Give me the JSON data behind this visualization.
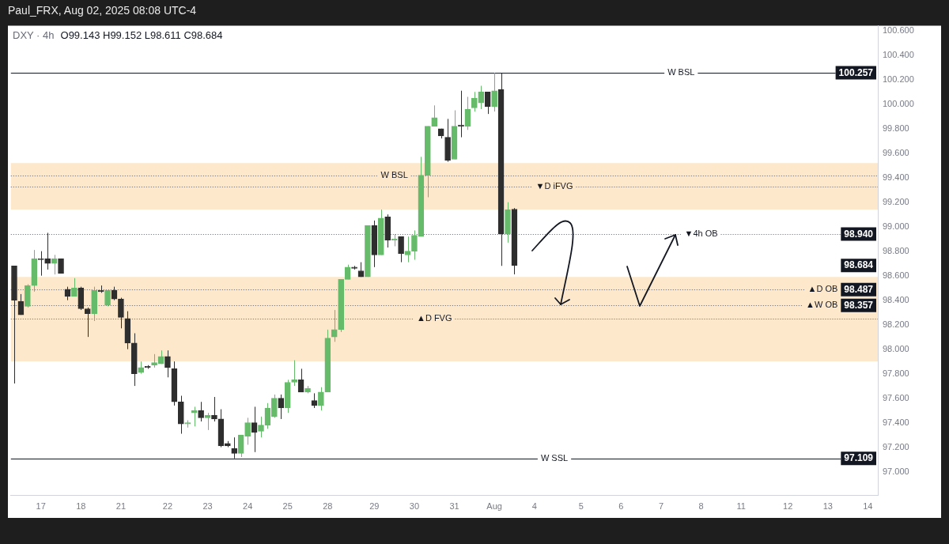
{
  "chart_data": {
    "type": "candlestick",
    "title": "DXY · 4h",
    "subtitle": "O99.143 H99.152 L98.611 C98.684",
    "annotations": [
      "Paul_FRX, Aug 02, 2025 08:08 UTC-4",
      "98.684",
      "100.257",
      "98.940",
      "98.487",
      "98.357",
      "97.109"
    ],
    "categories": [
      null,
      null,
      null,
      null,
      "17",
      null,
      null,
      null,
      null,
      null,
      "18",
      null,
      null,
      null,
      null,
      null,
      "21",
      null,
      null,
      null,
      null,
      null,
      null,
      "22",
      null,
      null,
      null,
      null,
      null,
      "23",
      null,
      null,
      null,
      null,
      null,
      "24",
      null,
      null,
      null,
      null,
      null,
      "25",
      null,
      null,
      null,
      null,
      null,
      "28",
      null,
      null,
      null,
      null,
      null,
      null,
      "29",
      null,
      null,
      null,
      null,
      null,
      "30",
      null,
      null,
      null,
      null,
      null,
      "31",
      null,
      null,
      null,
      null,
      null,
      "Aug",
      null,
      null,
      null,
      null,
      null,
      "4",
      null,
      null,
      null,
      null,
      null,
      null,
      "5",
      null,
      null,
      null,
      null,
      null,
      "6",
      null,
      null,
      null,
      null,
      null,
      "7",
      null,
      null,
      null,
      null,
      null,
      "8",
      null,
      null,
      null,
      null,
      null,
      "11",
      null,
      null,
      null,
      null,
      null,
      null,
      "12",
      null,
      null,
      null,
      null,
      null,
      "13",
      null,
      null,
      null,
      null,
      null,
      "14",
      null
    ],
    "ohlc": [
      [
        98.68,
        98.68,
        97.72,
        98.4
      ],
      [
        98.39,
        98.45,
        98.28,
        98.28
      ],
      [
        98.35,
        98.53,
        98.34,
        98.52
      ],
      [
        98.52,
        98.81,
        98.47,
        98.74
      ],
      [
        98.74,
        98.8,
        98.6,
        98.73
      ],
      [
        98.74,
        98.95,
        98.65,
        98.7
      ],
      [
        98.7,
        98.77,
        98.61,
        98.74
      ],
      [
        98.74,
        98.74,
        98.62,
        98.62
      ],
      [
        98.49,
        98.51,
        98.4,
        98.43
      ],
      [
        98.43,
        98.58,
        98.43,
        98.5
      ],
      [
        98.5,
        98.51,
        98.32,
        98.33
      ],
      [
        98.33,
        98.34,
        98.1,
        98.29
      ],
      [
        98.29,
        98.51,
        98.23,
        98.48
      ],
      [
        98.48,
        98.52,
        98.46,
        98.47
      ],
      [
        98.36,
        98.48,
        98.35,
        98.48
      ],
      [
        98.48,
        98.51,
        98.4,
        98.41
      ],
      [
        98.41,
        98.42,
        98.17,
        98.26
      ],
      [
        98.25,
        98.31,
        98.0,
        98.05
      ],
      [
        98.05,
        98.13,
        97.7,
        97.8
      ],
      [
        97.81,
        97.9,
        97.8,
        97.85
      ],
      [
        97.86,
        97.87,
        97.84,
        97.85
      ],
      [
        97.87,
        97.96,
        97.85,
        97.89
      ],
      [
        97.88,
        97.99,
        97.88,
        97.94
      ],
      [
        97.94,
        97.99,
        97.77,
        97.85
      ],
      [
        97.84,
        97.9,
        97.54,
        97.57
      ],
      [
        97.57,
        97.62,
        97.31,
        97.39
      ],
      [
        97.39,
        97.42,
        97.36,
        97.4
      ],
      [
        97.48,
        97.53,
        97.37,
        97.5
      ],
      [
        97.5,
        97.57,
        97.41,
        97.44
      ],
      [
        97.44,
        97.48,
        97.34,
        97.46
      ],
      [
        97.46,
        97.61,
        97.41,
        97.43
      ],
      [
        97.43,
        97.51,
        97.2,
        97.21
      ],
      [
        97.23,
        97.25,
        97.2,
        97.21
      ],
      [
        97.19,
        97.28,
        97.109,
        97.15
      ],
      [
        97.15,
        97.3,
        97.12,
        97.3
      ],
      [
        97.29,
        97.44,
        97.22,
        97.4
      ],
      [
        97.4,
        97.53,
        97.16,
        97.32
      ],
      [
        97.33,
        97.45,
        97.28,
        97.38
      ],
      [
        97.38,
        97.56,
        97.35,
        97.52
      ],
      [
        97.45,
        97.63,
        97.44,
        97.6
      ],
      [
        97.6,
        97.63,
        97.43,
        97.52
      ],
      [
        97.52,
        97.75,
        97.48,
        97.73
      ],
      [
        97.73,
        97.91,
        97.7,
        97.75
      ],
      [
        97.75,
        97.84,
        97.65,
        97.65
      ],
      [
        97.65,
        97.7,
        97.64,
        97.68
      ],
      [
        97.58,
        97.64,
        97.52,
        97.54
      ],
      [
        97.54,
        97.69,
        97.5,
        97.65
      ],
      [
        97.65,
        98.16,
        97.65,
        98.09
      ],
      [
        98.1,
        98.32,
        98.06,
        98.16
      ],
      [
        98.16,
        98.57,
        98.14,
        98.57
      ],
      [
        98.57,
        98.69,
        98.57,
        98.67
      ],
      [
        98.67,
        98.68,
        98.65,
        98.66
      ],
      [
        98.64,
        98.71,
        98.59,
        98.59
      ],
      [
        98.59,
        99.01,
        98.59,
        99.01
      ],
      [
        99.01,
        99.05,
        98.67,
        98.77
      ],
      [
        98.77,
        99.14,
        98.77,
        99.07
      ],
      [
        99.08,
        99.1,
        98.83,
        98.89
      ],
      [
        98.89,
        98.94,
        98.84,
        98.9
      ],
      [
        98.92,
        98.92,
        98.71,
        98.78
      ],
      [
        98.77,
        98.92,
        98.71,
        98.8
      ],
      [
        98.8,
        98.97,
        98.73,
        98.93
      ],
      [
        98.92,
        99.57,
        98.92,
        99.42
      ],
      [
        99.42,
        99.82,
        99.24,
        99.82
      ],
      [
        99.82,
        99.99,
        99.82,
        99.89
      ],
      [
        99.8,
        99.8,
        99.72,
        99.74
      ],
      [
        99.73,
        99.88,
        99.53,
        99.54
      ],
      [
        99.55,
        99.95,
        99.55,
        99.82
      ],
      [
        99.83,
        100.11,
        99.73,
        99.82
      ],
      [
        99.82,
        100.06,
        99.79,
        99.96
      ],
      [
        99.97,
        100.1,
        99.94,
        100.05
      ],
      [
        100.01,
        100.15,
        99.96,
        100.1
      ],
      [
        100.1,
        100.1,
        99.92,
        99.98
      ],
      [
        99.98,
        100.257,
        99.94,
        100.11
      ],
      [
        100.12,
        100.25,
        98.68,
        98.94
      ],
      [
        98.94,
        99.2,
        98.87,
        99.14
      ],
      [
        99.143,
        99.152,
        98.611,
        98.684
      ],
      null,
      null,
      null,
      null,
      null,
      null,
      null,
      null,
      null,
      null,
      null,
      null,
      null,
      null,
      null,
      null,
      null,
      null,
      null,
      null,
      null,
      null,
      null,
      null,
      null,
      null,
      null,
      null,
      null,
      null,
      null,
      null,
      null,
      null,
      null,
      null,
      null,
      null,
      null,
      null,
      null,
      null,
      null,
      null,
      null,
      null,
      null,
      null,
      null,
      null,
      null,
      null,
      null,
      null
    ],
    "colors": [
      "#2e2e2e",
      "#2e2e2e",
      "#66bb6a",
      "#66bb6a",
      "#2e2e2e",
      "#2e2e2e",
      "#66bb6a",
      "#2e2e2e",
      "#2e2e2e",
      "#66bb6a",
      "#2e2e2e",
      "#2e2e2e",
      "#66bb6a",
      "#2e2e2e",
      "#66bb6a",
      "#2e2e2e",
      "#2e2e2e",
      "#2e2e2e",
      "#2e2e2e",
      "#66bb6a",
      "#2e2e2e",
      "#66bb6a",
      "#66bb6a",
      "#2e2e2e",
      "#2e2e2e",
      "#2e2e2e",
      "#66bb6a",
      "#66bb6a",
      "#2e2e2e",
      "#66bb6a",
      "#2e2e2e",
      "#2e2e2e",
      "#2e2e2e",
      "#2e2e2e",
      "#66bb6a",
      "#66bb6a",
      "#2e2e2e",
      "#66bb6a",
      "#66bb6a",
      "#66bb6a",
      "#2e2e2e",
      "#66bb6a",
      "#66bb6a",
      "#2e2e2e",
      "#66bb6a",
      "#2e2e2e",
      "#66bb6a",
      "#66bb6a",
      "#66bb6a",
      "#66bb6a",
      "#66bb6a",
      "#2e2e2e",
      "#2e2e2e",
      "#66bb6a",
      "#2e2e2e",
      "#66bb6a",
      "#2e2e2e",
      "#66bb6a",
      "#2e2e2e",
      "#66bb6a",
      "#66bb6a",
      "#66bb6a",
      "#66bb6a",
      "#66bb6a",
      "#2e2e2e",
      "#2e2e2e",
      "#66bb6a",
      "#2e2e2e",
      "#66bb6a",
      "#66bb6a",
      "#66bb6a",
      "#2e2e2e",
      "#66bb6a",
      "#2e2e2e",
      "#66bb6a",
      "#2e2e2e",
      null,
      null,
      null,
      null,
      null,
      null,
      null,
      null,
      null,
      null,
      null,
      null,
      null,
      null,
      null,
      null,
      null,
      null,
      null,
      null,
      null,
      null,
      null,
      null,
      null,
      null,
      null,
      null,
      null,
      null,
      null,
      null,
      null,
      null,
      null,
      null,
      null,
      null,
      null,
      null,
      null,
      null,
      null,
      null,
      null,
      null,
      null,
      null,
      null,
      null,
      null,
      null,
      null,
      null
    ],
    "ylim": [
      96.81,
      100.64
    ],
    "yticks": [
      {
        "value": 97,
        "label": "97.000"
      },
      {
        "value": 97.2,
        "label": "97.200"
      },
      {
        "value": 97.4,
        "label": "97.400"
      },
      {
        "value": 97.6,
        "label": "97.600"
      },
      {
        "value": 97.8,
        "label": "97.800"
      },
      {
        "value": 98,
        "label": "98.000"
      },
      {
        "value": 98.2,
        "label": "98.200"
      },
      {
        "value": 98.4,
        "label": "98.400"
      },
      {
        "value": 98.6,
        "label": "98.600"
      },
      {
        "value": 98.8,
        "label": "98.800"
      },
      {
        "value": 99,
        "label": "99.000"
      },
      {
        "value": 99.2,
        "label": "99.200"
      },
      {
        "value": 99.4,
        "label": "99.400"
      },
      {
        "value": 99.6,
        "label": "99.600"
      },
      {
        "value": 99.8,
        "label": "99.800"
      },
      {
        "value": 100,
        "label": "100.000"
      },
      {
        "value": 100.2,
        "label": "100.200"
      },
      {
        "value": 100.4,
        "label": "100.400"
      },
      {
        "value": 100.6,
        "label": "100.600"
      }
    ],
    "bands": [
      {
        "axis": "y",
        "from": 99.14,
        "to": 99.52,
        "color": "#fde8cc"
      },
      {
        "axis": "y",
        "from": 97.9,
        "to": 98.59,
        "color": "#fde8cc"
      }
    ],
    "ref_lines": [
      {
        "axis": "y",
        "value": 100.257,
        "label": "W BSL",
        "color": "#131722",
        "line_style": "solid"
      },
      {
        "axis": "y",
        "value": 99.42,
        "label": "W BSL",
        "color": "#5d606b",
        "line_style": "dotted"
      },
      {
        "axis": "y",
        "value": 99.33,
        "label": "▼D iFVG",
        "color": "#5d606b",
        "line_style": "dotted"
      },
      {
        "axis": "y",
        "value": 98.94,
        "label": "▼4h OB",
        "color": "#5d606b",
        "line_style": "dotted"
      },
      {
        "axis": "y",
        "value": 98.487,
        "label": "▲D OB",
        "color": "#5d606b",
        "line_style": "dotted"
      },
      {
        "axis": "y",
        "value": 98.357,
        "label": "▲W OB",
        "color": "#5d606b",
        "line_style": "dotted"
      },
      {
        "axis": "y",
        "value": 98.25,
        "label": "▲D FVG",
        "color": "#5d606b",
        "line_style": "dotted"
      },
      {
        "axis": "y",
        "value": 97.109,
        "label": "W SSL",
        "color": "#131722",
        "line_style": "solid"
      }
    ]
  }
}
